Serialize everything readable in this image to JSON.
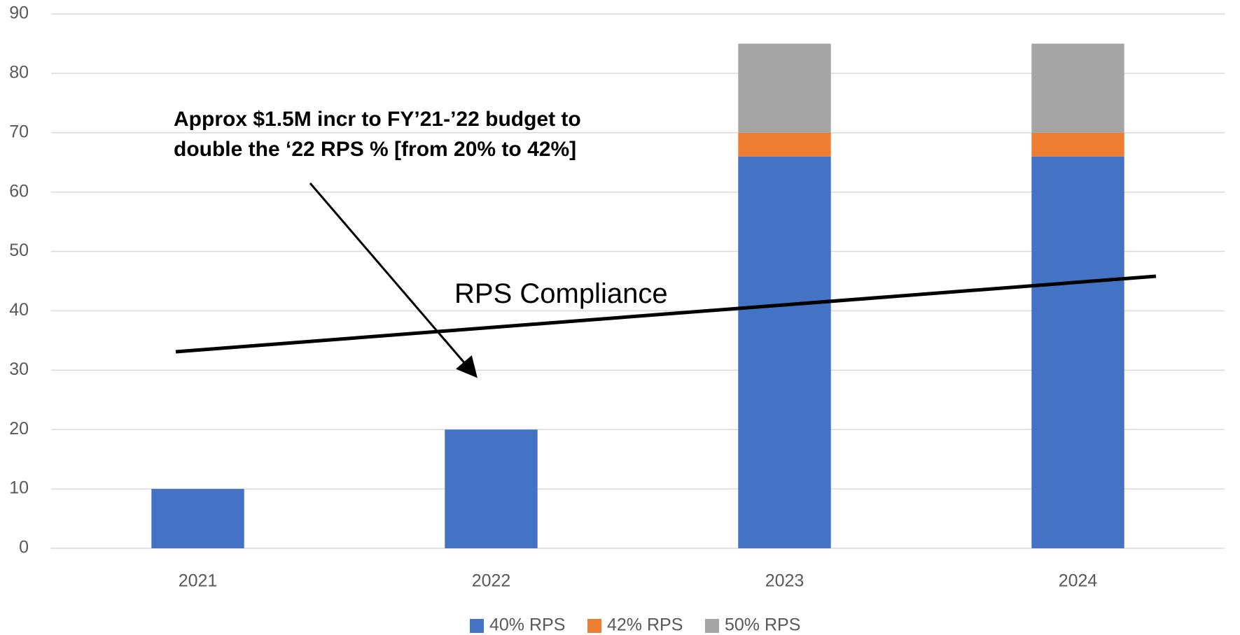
{
  "chart_data": {
    "type": "stacked_bar",
    "categories": [
      "2021",
      "2022",
      "2023",
      "2024"
    ],
    "series": [
      {
        "name": "40% RPS",
        "color": "#4472c4",
        "values": [
          10,
          20,
          66,
          66
        ]
      },
      {
        "name": "42% RPS",
        "color": "#ed7d31",
        "values": [
          0,
          0,
          4,
          4
        ]
      },
      {
        "name": "50% RPS",
        "color": "#a5a5a5",
        "values": [
          0,
          0,
          15,
          15
        ]
      }
    ],
    "ylim": [
      0,
      90
    ],
    "yticks": [
      0,
      10,
      20,
      30,
      40,
      50,
      60,
      70,
      80,
      90
    ],
    "grid": true,
    "legend": "bottom",
    "annotation_lines": [
      "Approx $1.5M incr to FY’21-’22 budget to",
      "double the ‘22 RPS % [from 20% to 42%]"
    ],
    "trend_label": "RPS Compliance"
  }
}
